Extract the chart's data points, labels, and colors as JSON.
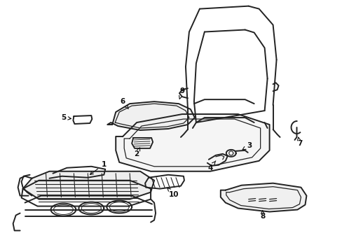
{
  "background_color": "#ffffff",
  "line_color": "#222222",
  "line_width": 1.4,
  "figsize": [
    4.89,
    3.6
  ],
  "dpi": 100
}
